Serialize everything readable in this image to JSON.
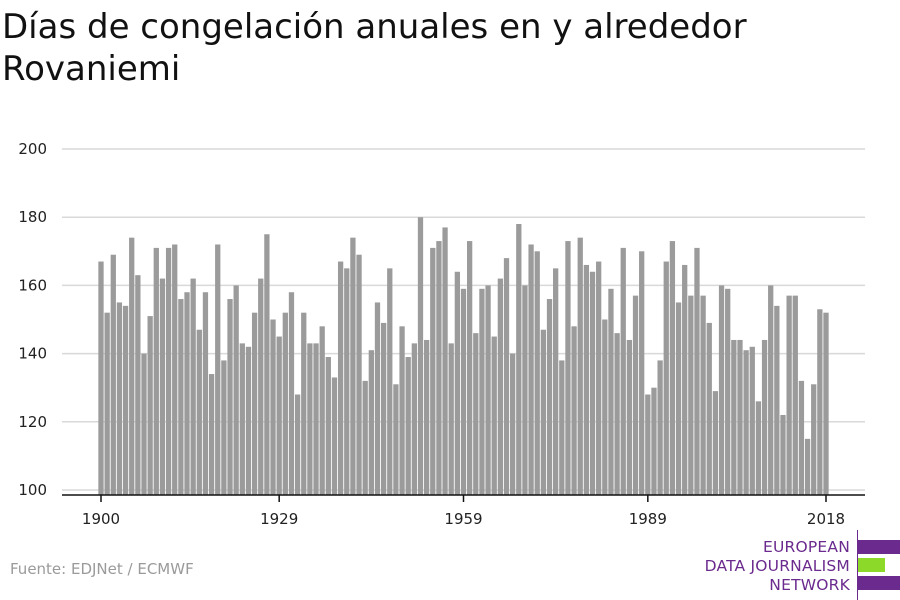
{
  "title": "Días de congelación anuales en y alrededor Rovaniemi",
  "source": "Fuente: EDJNet / ECMWF",
  "logo": {
    "lines": [
      "EUROPEAN",
      "DATA JOURNALISM",
      "NETWORK"
    ],
    "colors": {
      "purple": "#6b2a8e",
      "green": "#8dd92a"
    }
  },
  "chart_data": {
    "type": "bar",
    "title": "Días de congelación anuales en y alrededor Rovaniemi",
    "xlabel": "",
    "ylabel": "",
    "ylim": [
      100,
      200
    ],
    "xlim": [
      1900,
      2018
    ],
    "yticks": [
      "100",
      "120",
      "140",
      "160",
      "180",
      "200"
    ],
    "xticks": [
      "1900",
      "1929",
      "1959",
      "1989",
      "2018"
    ],
    "grid": true,
    "bar_color": "#9b9b9b",
    "series": [
      {
        "start_year": 1900,
        "values": [
          167,
          152,
          169,
          155,
          154,
          174,
          163,
          140,
          151,
          171,
          162,
          171,
          172,
          156,
          158,
          162,
          147,
          158,
          134,
          172,
          138,
          156,
          160,
          143,
          142,
          152,
          162,
          175,
          150,
          145,
          152,
          158,
          128,
          152,
          143,
          143,
          148,
          139,
          133,
          167,
          165,
          174,
          169,
          132,
          141,
          155,
          149,
          165,
          131,
          148,
          139,
          143,
          180,
          144,
          171,
          173,
          177,
          143,
          164,
          159,
          173,
          146,
          159,
          160,
          145,
          162,
          168,
          140,
          178,
          160,
          172,
          170,
          147,
          156,
          165,
          138,
          173,
          148,
          174,
          166,
          164,
          167,
          150,
          159,
          146,
          171,
          144,
          157,
          170,
          128,
          130,
          138,
          167,
          173,
          155,
          166,
          157,
          171,
          157,
          149,
          129,
          160,
          159,
          144,
          144,
          141,
          142,
          126,
          144,
          160,
          154,
          122,
          157,
          157,
          132,
          115,
          131,
          153,
          152
        ]
      }
    ]
  }
}
